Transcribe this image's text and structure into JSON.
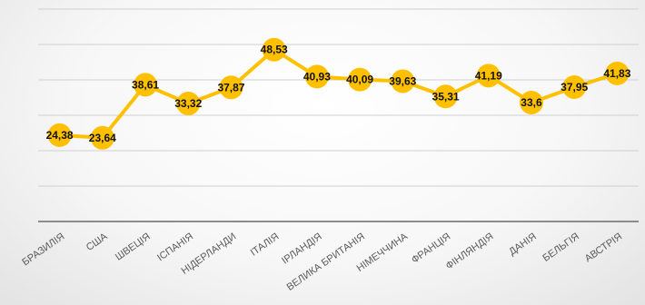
{
  "chart_data": {
    "type": "line",
    "categories": [
      "БРАЗИЛІЯ",
      "США",
      "ШВЕЦІЯ",
      "ІСПАНІЯ",
      "НІДЕРЛАНДИ",
      "ІТАЛІЯ",
      "ІРЛАНДІЯ",
      "ВЕЛИКА БРИТАНІЯ",
      "НІМЕЧЧИНА",
      "ФРАНЦІЯ",
      "ФІНЛЯНДІЯ",
      "ДАНІЯ",
      "БЕЛЬГІЯ",
      "АВСТРІЯ"
    ],
    "values": [
      24.38,
      23.64,
      38.61,
      33.32,
      37.87,
      48.53,
      40.93,
      40.09,
      39.63,
      35.31,
      41.19,
      33.6,
      37.95,
      41.83
    ],
    "data_labels": [
      "24,38",
      "23,64",
      "38,61",
      "33,32",
      "37,87",
      "48,53",
      "40,93",
      "40,09",
      "39,63",
      "35,31",
      "41,19",
      "33,6",
      "37,95",
      "41,83"
    ],
    "ylim": [
      0,
      60
    ],
    "grid": true,
    "colors": {
      "series": "#ffc000",
      "grid": "#d0d0d0",
      "axis": "#8c8c8c"
    }
  }
}
